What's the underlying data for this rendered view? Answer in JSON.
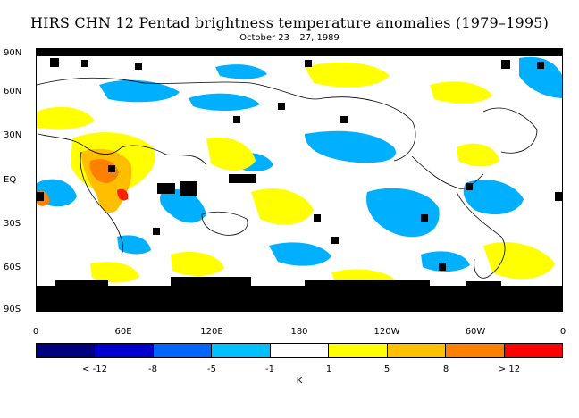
{
  "title": "HIRS CHN 12 Pentad brightness temperature anomalies (1979–1995)",
  "subtitle": "October 23 – 27, 1989",
  "lat_labels": [
    "90N",
    "60N",
    "30N",
    "EQ",
    "30S",
    "60S",
    "90S"
  ],
  "lon_labels": [
    "0",
    "60E",
    "120E",
    "180",
    "120W",
    "60W",
    "0"
  ],
  "colorbar": {
    "colors": [
      "#00007f",
      "#0000cc",
      "#0066ff",
      "#00c0ff",
      "#ffffff",
      "#ffff00",
      "#ffc000",
      "#ff8000",
      "#ff0000"
    ],
    "labels": [
      "< -12",
      "-8",
      "-5",
      "-1",
      "1",
      "5",
      "8",
      "> 12"
    ],
    "unit": "K"
  },
  "colors": {
    "blue": "#00b0ff",
    "yellow": "#ffff00",
    "orange": "#ffbf00",
    "darkorange": "#ff8000",
    "red": "#ff2000",
    "missing": "#000000"
  }
}
